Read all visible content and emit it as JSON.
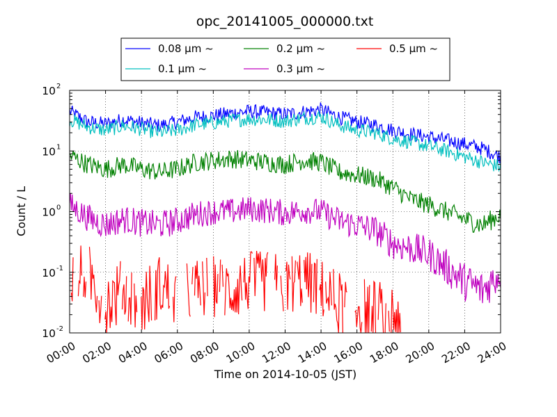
{
  "chart_data": {
    "type": "line",
    "title": "opc_20141005_000000.txt",
    "xlabel": "Time on 2014-10-05 (JST)",
    "ylabel": "Count / L",
    "xlim": [
      0,
      24
    ],
    "ylim": [
      0.01,
      100
    ],
    "yscale": "log",
    "grid": true,
    "legend_position": "top, above plot",
    "x_tick_labels": [
      "00:00",
      "02:00",
      "04:00",
      "06:00",
      "08:00",
      "10:00",
      "12:00",
      "14:00",
      "16:00",
      "18:00",
      "20:00",
      "22:00",
      "24:00"
    ],
    "y_ticks": [
      {
        "base": "10",
        "exp": "-2",
        "value": 0.01
      },
      {
        "base": "10",
        "exp": "-1",
        "value": 0.1
      },
      {
        "base": "10",
        "exp": "0",
        "value": 1
      },
      {
        "base": "10",
        "exp": "1",
        "value": 10
      },
      {
        "base": "10",
        "exp": "2",
        "value": 100
      }
    ],
    "x": [
      0,
      1,
      2,
      3,
      4,
      5,
      6,
      7,
      8,
      9,
      10,
      11,
      12,
      13,
      14,
      15,
      16,
      17,
      18,
      19,
      20,
      21,
      22,
      23,
      24
    ],
    "series": [
      {
        "name": "0.08 μm ~",
        "color": "#0000ff",
        "values": [
          45,
          30,
          28,
          33,
          29,
          26,
          30,
          36,
          38,
          42,
          45,
          43,
          40,
          44,
          48,
          36,
          30,
          27,
          22,
          19,
          17,
          15,
          13,
          11,
          8
        ]
      },
      {
        "name": "0.1 μm ~",
        "color": "#00bfbf",
        "values": [
          33,
          25,
          22,
          26,
          23,
          20,
          22,
          27,
          29,
          32,
          34,
          33,
          31,
          35,
          37,
          27,
          22,
          20,
          16,
          14,
          12,
          10,
          8,
          6.5,
          5.5
        ]
      },
      {
        "name": "0.2 μm ~",
        "color": "#008000",
        "values": [
          8.5,
          6,
          5,
          6,
          5,
          4.5,
          5,
          6.5,
          7,
          7.5,
          7,
          6.5,
          6,
          7,
          6.5,
          4.5,
          4,
          3.5,
          2.5,
          1.6,
          1.3,
          1.0,
          0.75,
          0.6,
          0.9
        ]
      },
      {
        "name": "0.3 μm ~",
        "color": "#bf00bf",
        "values": [
          1.3,
          0.8,
          0.6,
          0.75,
          0.65,
          0.6,
          0.7,
          0.9,
          1.0,
          1.0,
          1.1,
          1.05,
          0.95,
          1.05,
          1.0,
          0.7,
          0.6,
          0.5,
          0.3,
          0.25,
          0.2,
          0.12,
          0.07,
          0.05,
          0.1
        ]
      },
      {
        "name": "0.5 μm ~",
        "color": "#ff0000",
        "values": [
          0.08,
          0.1,
          0.03,
          0.05,
          0.03,
          0.06,
          0.04,
          0.05,
          0.06,
          0.05,
          0.07,
          0.07,
          0.06,
          0.08,
          0.05,
          0.03,
          0.03,
          0.02,
          0.02,
          null,
          null,
          null,
          null,
          null,
          null
        ]
      }
    ]
  }
}
